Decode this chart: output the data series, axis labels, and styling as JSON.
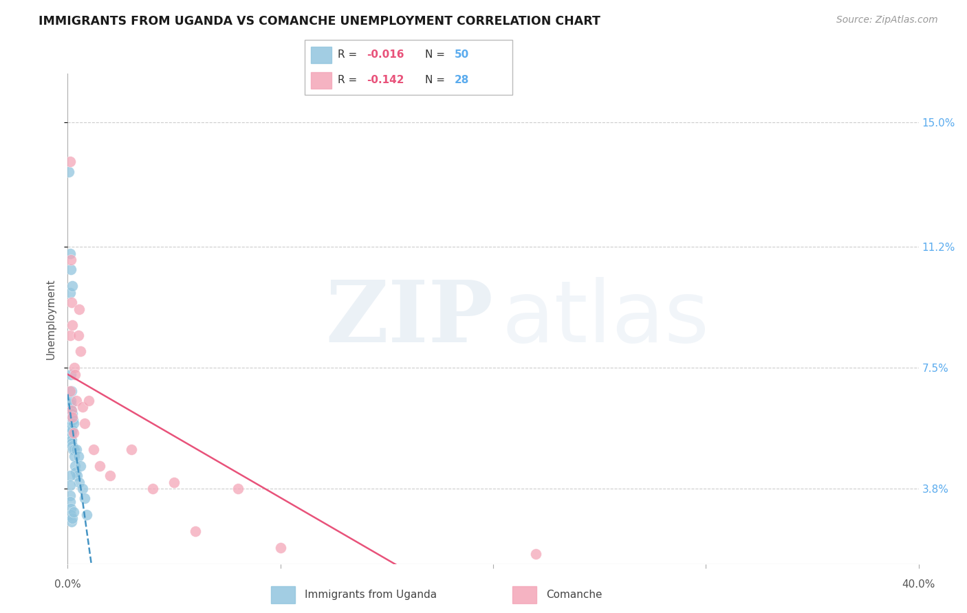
{
  "title": "IMMIGRANTS FROM UGANDA VS COMANCHE UNEMPLOYMENT CORRELATION CHART",
  "source": "Source: ZipAtlas.com",
  "ylabel": "Unemployment",
  "y_ticks": [
    3.8,
    7.5,
    11.2,
    15.0
  ],
  "y_tick_labels": [
    "3.8%",
    "7.5%",
    "11.2%",
    "15.0%"
  ],
  "xmin": 0.0,
  "xmax": 40.0,
  "ymin": 1.5,
  "ymax": 16.5,
  "legend1_label": "R = -0.016   N = 50",
  "legend2_label": "R = -0.142   N = 28",
  "legend1_R": "-0.016",
  "legend1_N": "50",
  "legend2_R": "-0.142",
  "legend2_N": "28",
  "blue_color": "#92c5de",
  "pink_color": "#f4a6b8",
  "blue_line_color": "#4393c3",
  "pink_line_color": "#e8527a",
  "blue_scatter_label": "Immigrants from Uganda",
  "pink_scatter_label": "Comanche",
  "blue_x": [
    0.05,
    0.07,
    0.08,
    0.09,
    0.1,
    0.1,
    0.11,
    0.12,
    0.12,
    0.13,
    0.13,
    0.14,
    0.14,
    0.15,
    0.15,
    0.16,
    0.16,
    0.17,
    0.17,
    0.18,
    0.18,
    0.19,
    0.2,
    0.2,
    0.21,
    0.22,
    0.23,
    0.25,
    0.27,
    0.3,
    0.32,
    0.35,
    0.38,
    0.4,
    0.45,
    0.5,
    0.55,
    0.6,
    0.7,
    0.8,
    0.1,
    0.11,
    0.12,
    0.13,
    0.14,
    0.15,
    0.18,
    0.22,
    0.28,
    0.9
  ],
  "blue_y": [
    13.5,
    6.2,
    6.0,
    5.8,
    6.3,
    5.5,
    5.7,
    11.0,
    9.8,
    5.9,
    6.1,
    6.4,
    7.3,
    10.5,
    6.5,
    5.4,
    6.0,
    5.5,
    6.8,
    5.3,
    6.2,
    5.2,
    10.0,
    5.6,
    5.1,
    6.1,
    5.0,
    5.9,
    5.8,
    5.0,
    4.8,
    4.5,
    4.3,
    5.0,
    4.2,
    4.8,
    4.0,
    4.5,
    3.8,
    3.5,
    4.2,
    3.9,
    3.6,
    3.4,
    3.2,
    3.0,
    2.8,
    2.9,
    3.1,
    3.0
  ],
  "pink_x": [
    0.1,
    0.12,
    0.13,
    0.15,
    0.17,
    0.18,
    0.2,
    0.22,
    0.28,
    0.32,
    0.35,
    0.4,
    0.5,
    0.55,
    0.6,
    0.7,
    0.8,
    1.0,
    1.2,
    1.5,
    2.0,
    3.0,
    4.0,
    5.0,
    6.0,
    8.0,
    10.0,
    22.0
  ],
  "pink_y": [
    13.8,
    8.5,
    6.8,
    10.8,
    6.2,
    9.5,
    6.0,
    8.8,
    5.5,
    7.5,
    7.3,
    6.5,
    8.5,
    9.3,
    8.0,
    6.3,
    5.8,
    6.5,
    5.0,
    4.5,
    4.2,
    5.0,
    3.8,
    4.0,
    2.5,
    3.8,
    2.0,
    1.8
  ]
}
